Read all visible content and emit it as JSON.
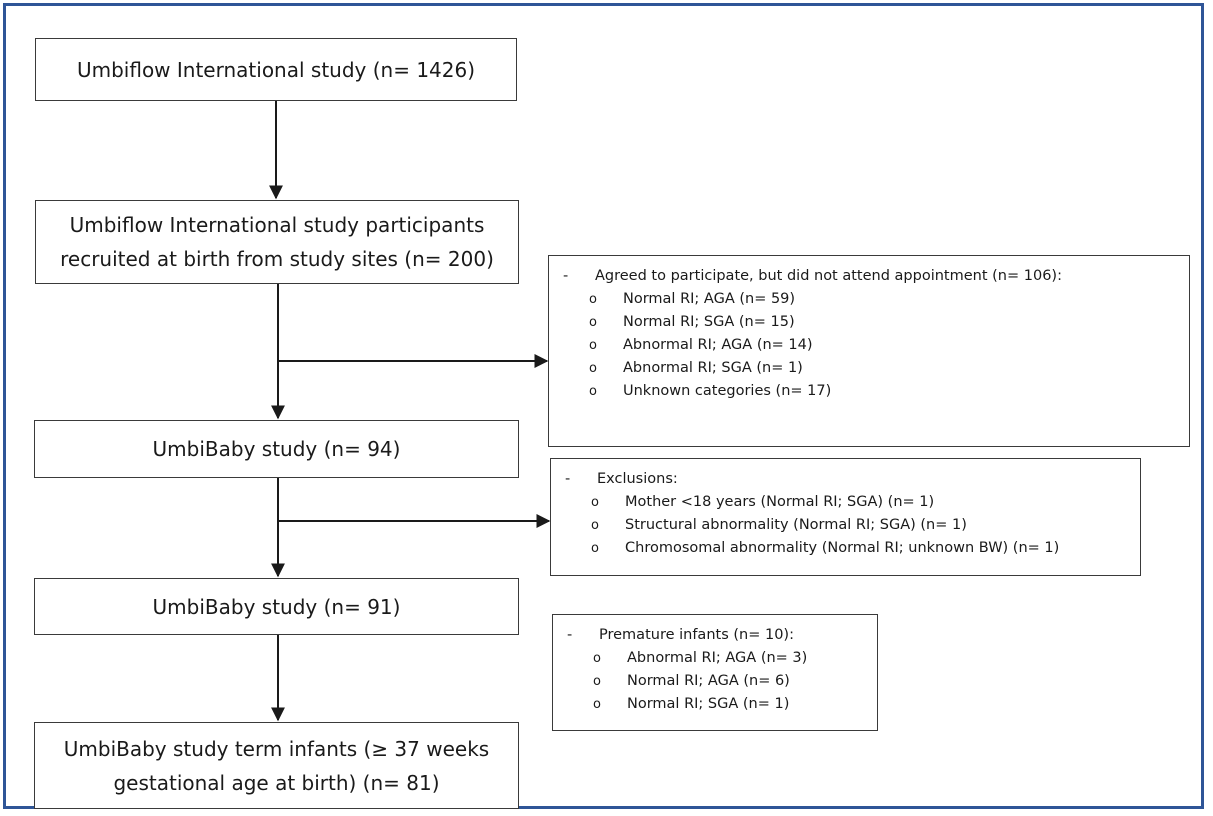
{
  "flow": {
    "box1": {
      "text": "Umbiflow International study (n= 1426)"
    },
    "box2": {
      "line1": "Umbiflow International study participants",
      "line2": "recruited at birth from study sites (n= 200)"
    },
    "box3": {
      "text": "UmbiBaby study (n= 94)"
    },
    "box4": {
      "text": "UmbiBaby study (n= 91)"
    },
    "box5": {
      "line1": "UmbiBaby study term infants (≥ 37 weeks",
      "line2": "gestational age at birth) (n= 81)"
    }
  },
  "side_boxes": {
    "not_attended": {
      "dash": "-",
      "heading": "Agreed to participate, but did not attend appointment (n= 106):",
      "bullet": "o",
      "items": [
        "Normal RI; AGA (n= 59)",
        "Normal RI; SGA (n= 15)",
        "Abnormal RI; AGA (n= 14)",
        "Abnormal RI; SGA (n= 1)",
        "Unknown categories (n= 17)"
      ]
    },
    "exclusions": {
      "dash": "-",
      "heading": "Exclusions:",
      "bullet": "o",
      "items": [
        "Mother <18 years (Normal RI; SGA) (n= 1)",
        "Structural abnormality (Normal RI; SGA) (n= 1)",
        "Chromosomal abnormality (Normal RI; unknown BW) (n= 1)"
      ]
    },
    "premature": {
      "dash": "-",
      "heading": "Premature infants (n= 10):",
      "bullet": "o",
      "items": [
        "Abnormal RI; AGA (n= 3)",
        "Normal RI; AGA (n= 6)",
        "Normal RI; SGA (n= 1)"
      ]
    }
  }
}
